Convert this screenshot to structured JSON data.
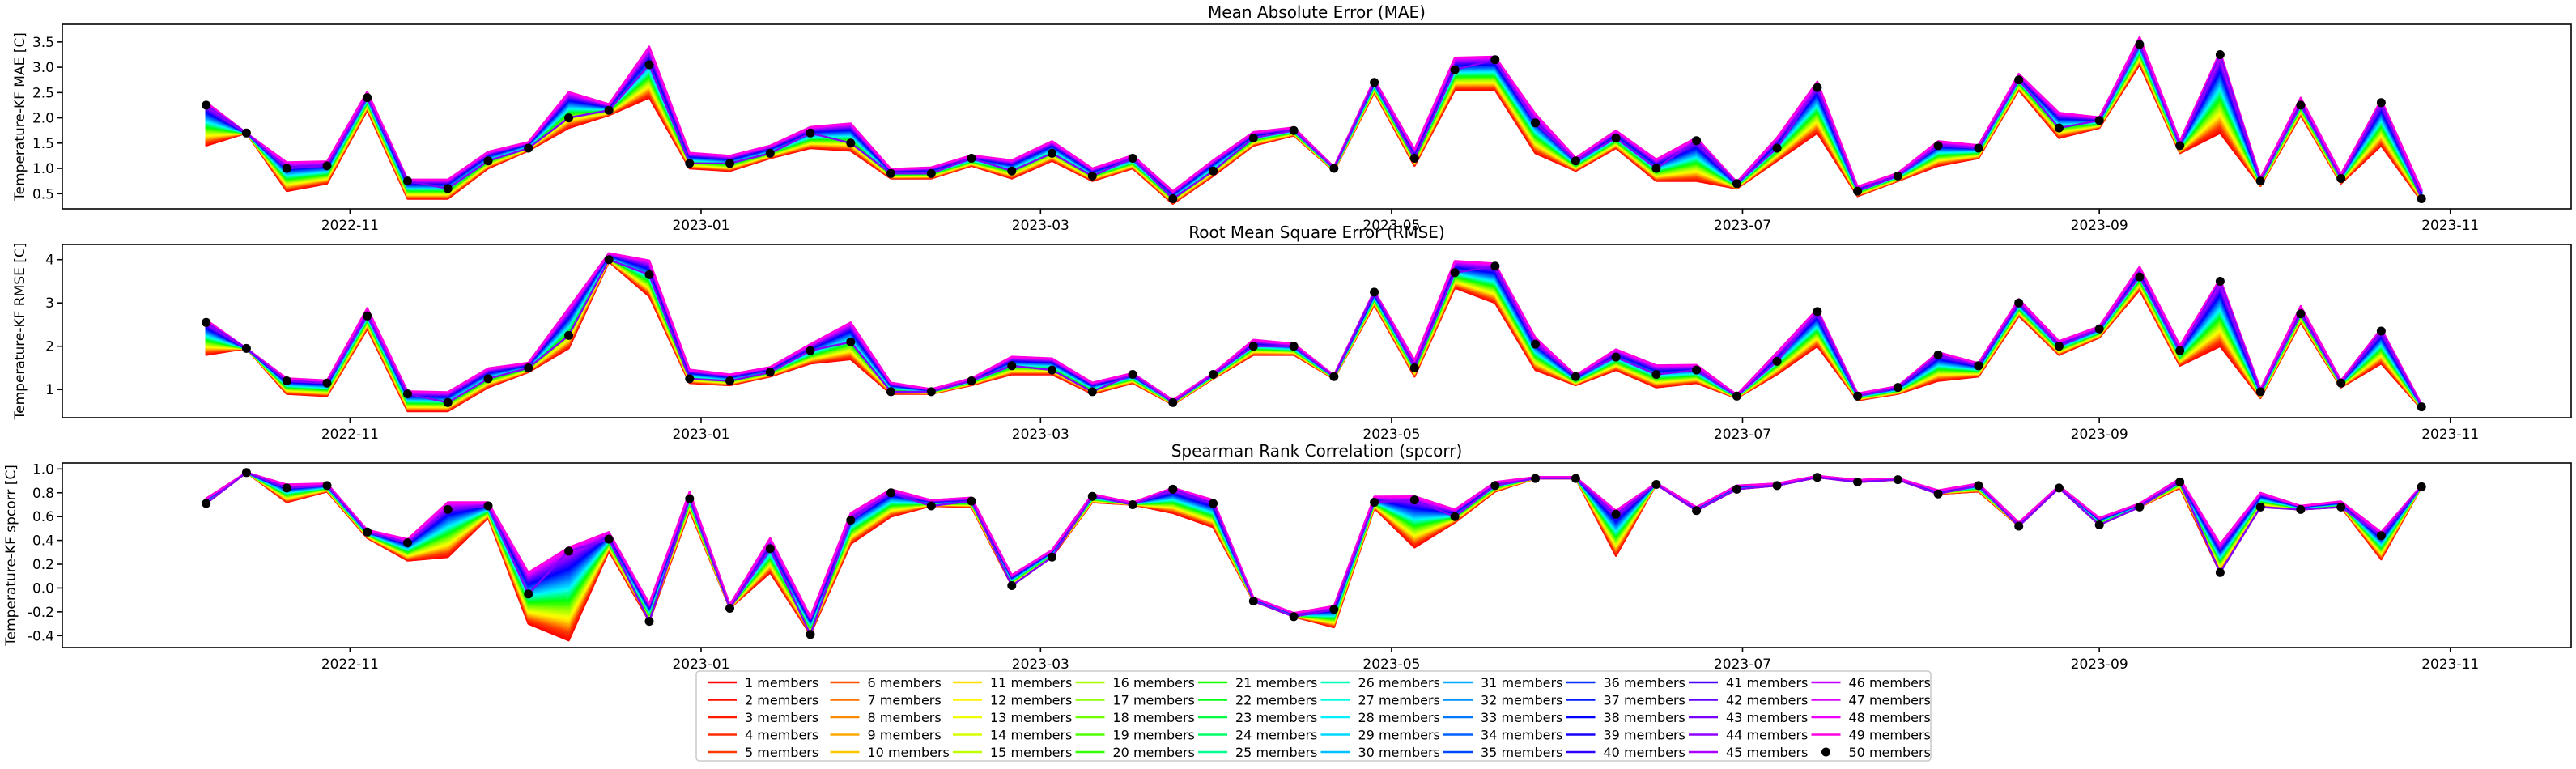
{
  "chart_data": [
    {
      "type": "line",
      "title": "Mean Absolute Error (MAE)",
      "xlabel": "",
      "ylabel": "Temperature-KF MAE [C]",
      "x_dates": [
        "2022-10-07",
        "2022-10-14",
        "2022-10-21",
        "2022-10-28",
        "2022-11-04",
        "2022-11-11",
        "2022-11-18",
        "2022-11-25",
        "2022-12-02",
        "2022-12-09",
        "2022-12-16",
        "2022-12-23",
        "2022-12-30",
        "2023-01-06",
        "2023-01-13",
        "2023-01-20",
        "2023-01-27",
        "2023-02-03",
        "2023-02-10",
        "2023-02-17",
        "2023-02-24",
        "2023-03-03",
        "2023-03-10",
        "2023-03-17",
        "2023-03-24",
        "2023-03-31",
        "2023-04-07",
        "2023-04-14",
        "2023-04-21",
        "2023-04-28",
        "2023-05-05",
        "2023-05-12",
        "2023-05-19",
        "2023-05-26",
        "2023-06-02",
        "2023-06-09",
        "2023-06-16",
        "2023-06-23",
        "2023-06-30",
        "2023-07-07",
        "2023-07-14",
        "2023-07-21",
        "2023-07-28",
        "2023-08-04",
        "2023-08-11",
        "2023-08-18",
        "2023-08-25",
        "2023-09-01",
        "2023-09-08",
        "2023-09-15",
        "2023-09-22",
        "2023-09-29",
        "2023-10-06",
        "2023-10-13",
        "2023-10-20",
        "2023-10-27"
      ],
      "ensemble_mean": [
        2.25,
        1.7,
        1.0,
        1.05,
        2.4,
        0.75,
        0.6,
        1.15,
        1.4,
        2.0,
        2.15,
        3.05,
        1.1,
        1.1,
        1.3,
        1.7,
        1.5,
        0.9,
        0.9,
        1.2,
        0.95,
        1.3,
        0.85,
        1.2,
        0.4,
        0.95,
        1.6,
        1.75,
        1.0,
        2.7,
        1.2,
        2.95,
        3.15,
        1.9,
        1.15,
        1.6,
        1.0,
        1.55,
        0.7,
        1.4,
        2.6,
        0.55,
        0.85,
        1.45,
        1.4,
        2.75,
        1.8,
        1.95,
        3.45,
        1.45,
        3.25,
        0.75,
        2.25,
        0.8,
        2.3,
        0.4
      ],
      "spread_low": [
        -0.8,
        0,
        -0.45,
        -0.35,
        -0.25,
        -0.35,
        -0.2,
        -0.15,
        -0.05,
        -0.2,
        -0.1,
        -0.65,
        -0.1,
        -0.15,
        -0.1,
        -0.3,
        -0.15,
        -0.1,
        -0.1,
        -0.15,
        -0.15,
        -0.15,
        -0.1,
        -0.2,
        -0.1,
        -0.1,
        -0.15,
        -0.1,
        -0.05,
        -0.2,
        -0.15,
        -0.4,
        -0.6,
        -0.6,
        -0.2,
        -0.2,
        -0.25,
        -0.8,
        -0.1,
        -0.25,
        -0.9,
        -0.1,
        -0.1,
        -0.4,
        -0.2,
        -0.2,
        -0.2,
        -0.15,
        -0.4,
        -0.15,
        -1.55,
        -0.1,
        -0.2,
        -0.1,
        -0.85,
        -0.05
      ],
      "spread_high": [
        0.1,
        0,
        0.2,
        0.15,
        0.2,
        0.05,
        0.3,
        0.3,
        0.2,
        0.85,
        0.2,
        0.6,
        0.35,
        0.25,
        0.25,
        0.2,
        0.65,
        0.15,
        0.2,
        0.1,
        0.35,
        0.4,
        0.25,
        0.1,
        0.25,
        0.35,
        0.2,
        0.1,
        0.05,
        0.1,
        0.3,
        0.4,
        0.1,
        0.3,
        0.1,
        0.25,
        0.3,
        0.1,
        0.05,
        0.35,
        0.2,
        0.15,
        0.1,
        0.15,
        0.1,
        0.2,
        0.5,
        0.1,
        0.25,
        0.15,
        0.1,
        0.1,
        0.25,
        0.15,
        0.1,
        0.3
      ],
      "yticks": [
        0.5,
        1.0,
        1.5,
        2.0,
        2.5,
        3.0,
        3.5
      ],
      "ylim": [
        0.2,
        3.85
      ],
      "xlim": [
        "2022-09-12",
        "2023-11-22"
      ],
      "xticks": [
        "2022-11",
        "2023-01",
        "2023-03",
        "2023-05",
        "2023-07",
        "2023-09",
        "2023-11"
      ],
      "grid": false
    },
    {
      "type": "line",
      "title": "Root Mean Square Error (RMSE)",
      "xlabel": "",
      "ylabel": "Temperature-KF RMSE [C]",
      "ensemble_mean": [
        2.55,
        1.95,
        1.2,
        1.15,
        2.7,
        0.9,
        0.7,
        1.25,
        1.5,
        2.25,
        4.0,
        3.65,
        1.25,
        1.2,
        1.4,
        1.9,
        2.1,
        0.95,
        0.95,
        1.2,
        1.55,
        1.45,
        0.95,
        1.35,
        0.7,
        1.35,
        2.0,
        2.0,
        1.3,
        3.25,
        1.5,
        3.7,
        3.85,
        2.05,
        1.3,
        1.75,
        1.35,
        1.45,
        0.85,
        1.65,
        2.8,
        0.85,
        1.05,
        1.8,
        1.55,
        3.0,
        2.0,
        2.4,
        3.6,
        1.9,
        3.5,
        0.95,
        2.75,
        1.15,
        2.35,
        0.6
      ],
      "spread_low": [
        -0.75,
        0,
        -0.3,
        -0.3,
        -0.3,
        -0.4,
        -0.2,
        -0.2,
        -0.1,
        -0.3,
        -0.05,
        -0.5,
        -0.1,
        -0.1,
        -0.1,
        -0.3,
        -0.4,
        -0.05,
        -0.05,
        -0.1,
        -0.2,
        -0.1,
        -0.05,
        -0.2,
        -0.05,
        -0.1,
        -0.2,
        -0.2,
        -0.05,
        -0.3,
        -0.2,
        -0.35,
        -0.85,
        -0.6,
        -0.2,
        -0.3,
        -0.3,
        -0.3,
        -0.05,
        -0.3,
        -0.8,
        -0.1,
        -0.15,
        -0.6,
        -0.25,
        -0.3,
        -0.2,
        -0.2,
        -0.3,
        -0.35,
        -1.5,
        -0.15,
        -0.2,
        -0.1,
        -0.75,
        -0.05
      ],
      "spread_high": [
        0.1,
        0,
        0.1,
        0.1,
        0.3,
        0.1,
        0.4,
        0.4,
        0.2,
        1.05,
        0.25,
        0.55,
        0.35,
        0.25,
        0.2,
        0.25,
        0.75,
        0.35,
        0.1,
        0.1,
        0.35,
        0.45,
        0.35,
        0.05,
        0.1,
        0.05,
        0.25,
        0.1,
        0.05,
        0.05,
        0.3,
        0.45,
        0.1,
        0.25,
        0.05,
        0.3,
        0.35,
        0.2,
        0.05,
        0.35,
        0.1,
        0.1,
        0.05,
        0.1,
        0.1,
        0.15,
        0.2,
        0.1,
        0.4,
        0.2,
        0.1,
        0.1,
        0.3,
        0.1,
        0.1,
        0.1
      ],
      "yticks": [
        1,
        2,
        3,
        4
      ],
      "ylim": [
        0.35,
        4.35
      ],
      "xlim": [
        "2022-09-12",
        "2023-11-22"
      ],
      "xticks": [
        "2022-11",
        "2023-01",
        "2023-03",
        "2023-05",
        "2023-07",
        "2023-09",
        "2023-11"
      ],
      "grid": false
    },
    {
      "type": "line",
      "title": "Spearman Rank Correlation (spcorr)",
      "xlabel": "",
      "ylabel": "Temperature-KF spcorr [C]",
      "ensemble_mean": [
        0.71,
        0.97,
        0.84,
        0.86,
        0.47,
        0.38,
        0.66,
        0.69,
        -0.05,
        0.31,
        0.41,
        -0.28,
        0.75,
        -0.17,
        0.33,
        -0.39,
        0.57,
        0.8,
        0.69,
        0.73,
        0.02,
        0.26,
        0.77,
        0.7,
        0.83,
        0.71,
        -0.11,
        -0.24,
        -0.18,
        0.72,
        0.74,
        0.6,
        0.86,
        0.92,
        0.92,
        0.62,
        0.87,
        0.65,
        0.83,
        0.86,
        0.93,
        0.89,
        0.91,
        0.79,
        0.86,
        0.52,
        0.84,
        0.53,
        0.68,
        0.89,
        0.13,
        0.68,
        0.66,
        0.68,
        0.44,
        0.85
      ],
      "spread_low": [
        0,
        0,
        -0.12,
        -0.05,
        -0.05,
        -0.15,
        -0.4,
        -0.1,
        -0.25,
        -0.75,
        -0.1,
        0,
        -0.1,
        0,
        -0.2,
        0,
        -0.2,
        -0.2,
        0,
        -0.05,
        0,
        0,
        -0.05,
        0,
        -0.2,
        -0.2,
        0,
        0,
        -0.15,
        -0.05,
        -0.4,
        -0.05,
        -0.05,
        0,
        0,
        -0.35,
        0,
        0,
        0,
        0,
        0,
        0,
        0,
        0,
        -0.05,
        0,
        0,
        0,
        0,
        -0.05,
        0,
        0,
        0,
        0,
        -0.2,
        0
      ],
      "spread_high": [
        0.07,
        0,
        0.05,
        0.03,
        0.03,
        0.05,
        0.1,
        0.05,
        0.3,
        0.05,
        0.1,
        0.25,
        0.1,
        0.05,
        0.15,
        0.25,
        0.1,
        0.05,
        0.08,
        0.05,
        0.15,
        0.1,
        0.03,
        0.03,
        0.02,
        0.05,
        0.05,
        0.05,
        0.05,
        0.08,
        0.05,
        0.1,
        0.05,
        0.02,
        0.02,
        0.05,
        0.02,
        0.05,
        0.05,
        0.03,
        0.02,
        0.03,
        0.02,
        0.05,
        0.03,
        0.05,
        0.03,
        0.1,
        0.05,
        0.05,
        0.4,
        0.2,
        0.05,
        0.08,
        0.05,
        0.02
      ],
      "yticks": [
        -0.4,
        -0.2,
        0.0,
        0.2,
        0.4,
        0.6,
        0.8,
        1.0
      ],
      "ylim": [
        -0.5,
        1.05
      ],
      "xlim": [
        "2022-09-12",
        "2023-11-22"
      ],
      "xticks": [
        "2022-11",
        "2023-01",
        "2023-03",
        "2023-05",
        "2023-07",
        "2023-09",
        "2023-11"
      ],
      "grid": false
    }
  ],
  "legend": {
    "placement": "bottom-center",
    "ncol": 10,
    "entries": [
      "1 members",
      "2 members",
      "3 members",
      "4 members",
      "5 members",
      "6 members",
      "7 members",
      "8 members",
      "9 members",
      "10 members",
      "11 members",
      "12 members",
      "13 members",
      "14 members",
      "15 members",
      "16 members",
      "17 members",
      "18 members",
      "19 members",
      "20 members",
      "21 members",
      "22 members",
      "23 members",
      "24 members",
      "25 members",
      "26 members",
      "27 members",
      "28 members",
      "29 members",
      "30 members",
      "31 members",
      "32 members",
      "33 members",
      "34 members",
      "35 members",
      "36 members",
      "37 members",
      "38 members",
      "39 members",
      "40 members",
      "41 members",
      "42 members",
      "43 members",
      "44 members",
      "45 members",
      "46 members",
      "47 members",
      "48 members",
      "49 members",
      "50 members"
    ],
    "colors": [
      "#ff0000",
      "#ff0d00",
      "#ff1b00",
      "#ff2a00",
      "#ff3800",
      "#ff5200",
      "#ff7000",
      "#ff8c00",
      "#ffa800",
      "#ffc400",
      "#ffe000",
      "#fff500",
      "#f0ff00",
      "#d8ff00",
      "#c0ff00",
      "#a8ff00",
      "#8cff00",
      "#6eff00",
      "#50ff00",
      "#32ff00",
      "#14ff00",
      "#00ff18",
      "#00ff40",
      "#00ff68",
      "#00ff90",
      "#00ffb8",
      "#00ffe0",
      "#00f0ff",
      "#00d8ff",
      "#00c0ff",
      "#00a8ff",
      "#0090ff",
      "#0078ff",
      "#0060ff",
      "#0048ff",
      "#0030ff",
      "#0018ff",
      "#0000ff",
      "#1800ff",
      "#3000ff",
      "#4800ff",
      "#6000ff",
      "#7800ff",
      "#9000ff",
      "#a800ff",
      "#c000ff",
      "#d800ff",
      "#f000ff",
      "#ff00e0",
      "#000000"
    ],
    "marker_last": "circle"
  }
}
